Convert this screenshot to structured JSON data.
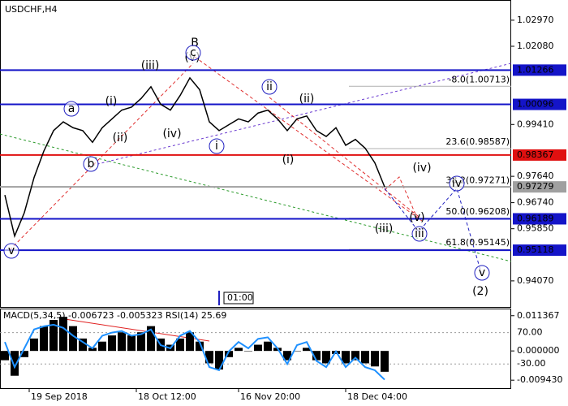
{
  "chart_data": [
    {
      "type": "line",
      "title": "USDCHF,H4",
      "color": "#000000",
      "values": [
        0.97,
        0.956,
        0.964,
        0.976,
        0.985,
        0.992,
        0.995,
        0.993,
        0.992,
        0.988,
        0.993,
        0.996,
        0.999,
        1.0,
        1.003,
        1.007,
        1.001,
        0.999,
        1.004,
        1.01,
        1.006,
        0.995,
        0.992,
        0.994,
        0.996,
        0.995,
        0.998,
        0.999,
        0.996,
        0.992,
        0.996,
        0.997,
        0.992,
        0.99,
        0.993,
        0.987,
        0.989,
        0.986,
        0.981,
        0.9728
      ],
      "xlim": [
        -0.5,
        52
      ],
      "xticks": [
        {
          "value": 2.5,
          "label": "19 Sep 2018"
        },
        {
          "value": 13.5,
          "label": "18 Oct 12:00"
        },
        {
          "value": 24,
          "label": "16 Nov 20:00"
        },
        {
          "value": 35,
          "label": "18 Dec 04:00"
        }
      ],
      "ylim": [
        0.9318,
        1.0366
      ],
      "yticks": [
        {
          "value": 1.0297,
          "label": "1.02970"
        },
        {
          "value": 1.0208,
          "label": "1.02080"
        },
        {
          "value": 0.9941,
          "label": "0.99410"
        },
        {
          "value": 0.9764,
          "label": "0.97640"
        },
        {
          "value": 0.9674,
          "label": "0.96740"
        },
        {
          "value": 0.9585,
          "label": "0.95850"
        },
        {
          "value": 0.9407,
          "label": "0.94070"
        }
      ],
      "levels": [
        {
          "value": 1.01266,
          "color": "#1414c8"
        },
        {
          "value": 1.00096,
          "color": "#1414c8"
        },
        {
          "value": 0.98367,
          "color": "#e01010"
        },
        {
          "value": 0.97279,
          "color": "#a0a0a0"
        },
        {
          "value": 0.96189,
          "color": "#1414c8"
        },
        {
          "value": 0.95118,
          "color": "#1414c8"
        }
      ],
      "fibonacci": [
        {
          "value": 1.00713,
          "label": "-8.0(1.00713)"
        },
        {
          "value": 0.98587,
          "label": "23.6(0.98587)"
        },
        {
          "value": 0.97271,
          "label": "38.2(0.97271)"
        },
        {
          "value": 0.96208,
          "label": "50.0(0.96208)"
        },
        {
          "value": 0.95145,
          "label": "61.8(0.95145)"
        }
      ],
      "annotations": [
        {
          "text": "v",
          "color": "#2020c0",
          "circled": true
        },
        {
          "text": "a",
          "color": "#2020c0",
          "circled": true
        },
        {
          "text": "b",
          "color": "#2020c0",
          "circled": true
        },
        {
          "text": "(i)",
          "color": "#e02020",
          "circled": false
        },
        {
          "text": "(ii)",
          "color": "#e02020",
          "circled": false
        },
        {
          "text": "(iii)",
          "color": "#e02020",
          "circled": false
        },
        {
          "text": "(iv)",
          "color": "#e02020",
          "circled": false
        },
        {
          "text": "(v)",
          "color": "#e02020",
          "circled": false
        },
        {
          "text": "B",
          "color": "#e02020",
          "circled": false
        },
        {
          "text": "c",
          "color": "#2020c0",
          "circled": true
        },
        {
          "text": "i",
          "color": "#2020c0",
          "circled": true
        },
        {
          "text": "ii",
          "color": "#2020c0",
          "circled": true
        },
        {
          "text": "(i)",
          "color": "#e02020",
          "circled": false
        },
        {
          "text": "(ii)",
          "color": "#e02020",
          "circled": false
        },
        {
          "text": "(iii)",
          "color": "#e02020",
          "circled": false
        },
        {
          "text": "(iv)",
          "color": "#e02020",
          "circled": false
        },
        {
          "text": "(v)",
          "color": "#e02020",
          "circled": false
        },
        {
          "text": "iii",
          "color": "#2020c0",
          "circled": true
        },
        {
          "text": "iv",
          "color": "#2020c0",
          "circled": true
        },
        {
          "text": "v",
          "color": "#2020c0",
          "circled": true
        },
        {
          "text": "(2)",
          "color": "#2a8a2a",
          "circled": false
        }
      ],
      "cursor_label": "01:00"
    },
    {
      "type": "macd",
      "title": "MACD(5,34,5) -0.006723 -0.005323 RSI(14) 25.69",
      "color": "#000000",
      "line_color": "#1e90ff",
      "values": [
        -0.003,
        -0.008,
        -0.002,
        0.004,
        0.008,
        0.01,
        0.011,
        0.008,
        0.004,
        0.001,
        0.003,
        0.005,
        0.006,
        0.005,
        0.006,
        0.008,
        0.004,
        0.002,
        0.004,
        0.006,
        0.003,
        -0.004,
        -0.006,
        -0.002,
        0.001,
        0.0,
        0.002,
        0.003,
        0.001,
        -0.003,
        0.0,
        0.001,
        -0.003,
        -0.004,
        -0.001,
        -0.004,
        -0.003,
        -0.004,
        -0.005,
        -0.006723
      ],
      "line_values": [
        40,
        -40,
        20,
        80,
        90,
        95,
        85,
        60,
        40,
        20,
        60,
        70,
        75,
        60,
        65,
        80,
        30,
        20,
        60,
        75,
        40,
        -40,
        -50,
        10,
        40,
        20,
        50,
        55,
        20,
        -30,
        30,
        40,
        -20,
        -40,
        10,
        -40,
        -10,
        -40,
        -50,
        -80
      ],
      "ylim": [
        -0.012,
        0.0134
      ],
      "yticks": [
        0.011367,
        {
          "value": 0,
          "label": "0.000000"
        },
        {
          "value": -0.00943,
          "label": "-0.009430"
        }
      ],
      "y2lim": [
        -107,
        144
      ],
      "y2ticks": [
        {
          "value": 70,
          "label": "70.00"
        },
        {
          "value": -30,
          "label": "-30.00"
        }
      ]
    }
  ]
}
